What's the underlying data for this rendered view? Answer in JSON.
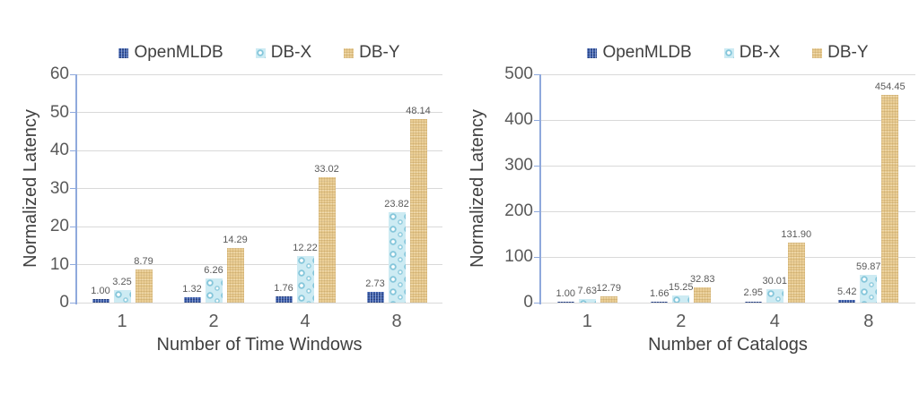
{
  "legend": [
    "OpenMLDB",
    "DB-X",
    "DB-Y"
  ],
  "colors": {
    "openmldb": "#3b5ca8",
    "dbx": "#cdebf3",
    "dbx_accent": "#74bed5",
    "dby": "#eace96",
    "dby_accent": "#d8b87b",
    "gridline": "#d9d9d9",
    "axis_line": "#8fa9dc",
    "tick_text": "#595959",
    "title_text": "#404040"
  },
  "chart_data": [
    {
      "type": "bar",
      "title": "",
      "categories": [
        "1",
        "2",
        "4",
        "8"
      ],
      "series": [
        {
          "name": "OpenMLDB",
          "values": [
            1.0,
            1.32,
            1.76,
            2.73
          ]
        },
        {
          "name": "DB-X",
          "values": [
            3.25,
            6.26,
            12.22,
            23.82
          ]
        },
        {
          "name": "DB-Y",
          "values": [
            8.79,
            14.29,
            33.02,
            48.14
          ]
        }
      ],
      "xlabel": "Number of Time Windows",
      "ylabel": "Normalized Latency",
      "ylim": [
        0,
        60
      ],
      "yticks": [
        0,
        10,
        20,
        30,
        40,
        50,
        60
      ],
      "grid": "horizontal",
      "legend_position": "top",
      "value_label_format": "2dp"
    },
    {
      "type": "bar",
      "title": "",
      "categories": [
        "1",
        "2",
        "4",
        "8"
      ],
      "series": [
        {
          "name": "OpenMLDB",
          "values": [
            1.0,
            1.66,
            2.95,
            5.42
          ]
        },
        {
          "name": "DB-X",
          "values": [
            7.63,
            15.25,
            30.01,
            59.87
          ]
        },
        {
          "name": "DB-Y",
          "values": [
            12.79,
            32.83,
            131.9,
            454.45
          ]
        }
      ],
      "xlabel": "Number of Catalogs",
      "ylabel": "Normalized Latency",
      "ylim": [
        0,
        500
      ],
      "yticks": [
        0,
        100,
        200,
        300,
        400,
        500
      ],
      "grid": "horizontal",
      "legend_position": "top",
      "value_label_format": "2dp"
    }
  ]
}
